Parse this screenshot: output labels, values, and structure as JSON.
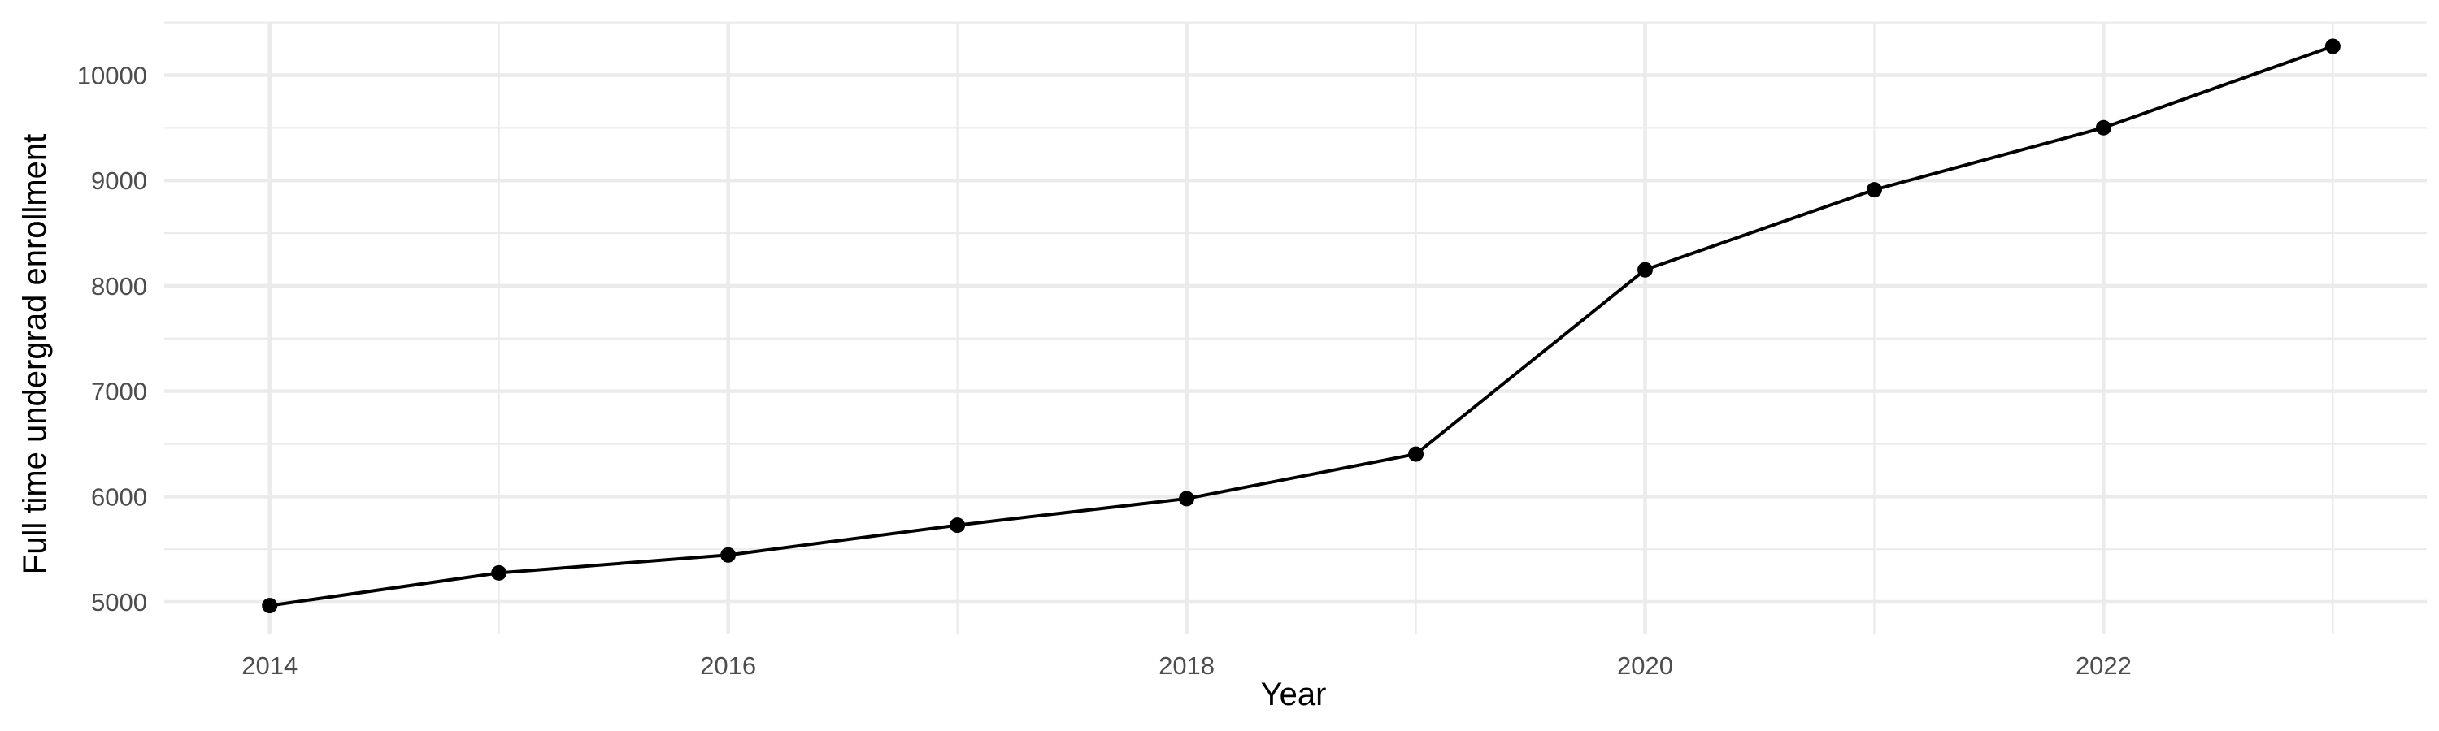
{
  "chart_data": {
    "type": "line",
    "title": "",
    "xlabel": "Year",
    "ylabel": "Full time undergrad enrollment",
    "x": [
      2014,
      2015,
      2016,
      2017,
      2018,
      2019,
      2020,
      2021,
      2022,
      2023
    ],
    "series": [
      {
        "values": [
          4965,
          5275,
          5445,
          5728,
          5980,
          6403,
          8152,
          8912,
          9501,
          10274
        ],
        "color": "#000000",
        "markers": true
      }
    ],
    "xticks": [
      "2014",
      "2016",
      "2018",
      "2020",
      "2022"
    ],
    "yticks": [
      "5000",
      "6000",
      "7000",
      "8000",
      "9000",
      "10000"
    ],
    "xlim": [
      2013.54,
      2023.41
    ],
    "ylim": [
      4692,
      10505
    ],
    "grid": true,
    "gridline_color": "#ebebeb"
  }
}
